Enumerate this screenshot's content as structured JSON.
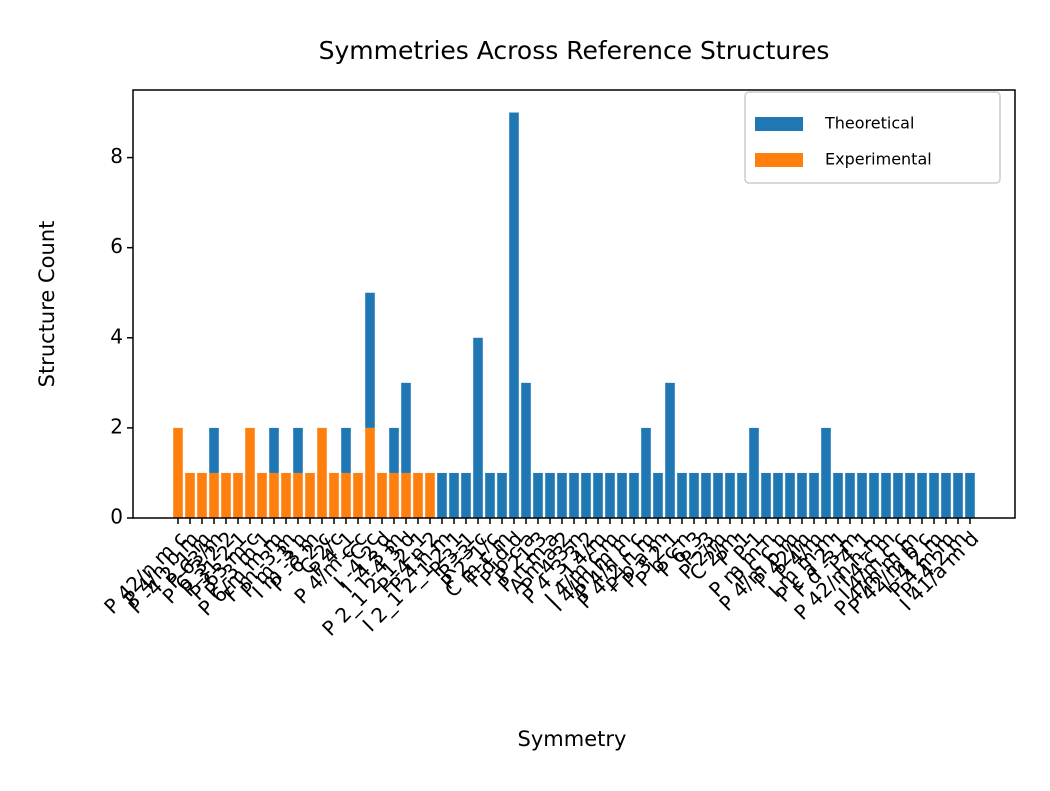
{
  "chart_data": {
    "type": "stacked_bar",
    "title": "Symmetries Across Reference Structures",
    "xlabel": "Symmetry",
    "ylabel": "Structure Count",
    "categories": [
      "P 42/n m c",
      "P 4/n b m",
      "P -4 2_1 m",
      "P 63/m",
      "P 6_3 2 2",
      "P 31 2 1",
      "P 63 m c",
      "P -3 m 1",
      "P 6/m m m",
      "F m -3 m",
      "P m -3 n",
      "I m -3 m",
      "P -6 2 c",
      "C 2/c",
      "P 4_1",
      "P 4/m c c",
      "C c",
      "I -4 2 d",
      "I -4 3 m",
      "I -4 3 d",
      "P 2_1 2_1 2_1",
      "P -4 n 2",
      "P 4 n m",
      "I 2_1 2_1 2_1",
      "P 3_1",
      "R -3 c",
      "P 2_1/c",
      "C m c m",
      "F d d d",
      "P b c a",
      "P 21 3",
      "P n m a",
      "A m a 2",
      "P -4 3 n",
      "P 4_3 3 2",
      "I 4/m",
      "I 4/m c m",
      "I 4/m m m",
      "P 4/n c c",
      "P 4_2 n m",
      "P b a m",
      "P 3 2 1",
      "P b c n",
      "P 6_3",
      "P -3",
      "P 2/m",
      "C 2/m",
      "P -1",
      "P 1",
      "P m m n",
      "P c c n",
      "P 4/m b m",
      "P 42/m",
      "P 4/m",
      "I m m m",
      "P c a 2_1",
      "F d -3 m",
      "I 4_1",
      "P 42/m n m",
      "I 4 c m",
      "I 4/m c c",
      "P 4/m m m",
      "P 42/m b c",
      "I -4 2 m",
      "P 4 m m",
      "P -4 2 m",
      "I 41/a m d"
    ],
    "series": [
      {
        "name": "Theoretical",
        "color": "#1f77b4",
        "values": [
          0,
          0,
          0,
          1,
          0,
          0,
          0,
          0,
          1,
          0,
          1,
          0,
          0,
          0,
          1,
          0,
          3,
          0,
          1,
          2,
          0,
          0,
          1,
          1,
          1,
          4,
          1,
          1,
          9,
          3,
          1,
          1,
          1,
          1,
          1,
          1,
          1,
          1,
          1,
          2,
          1,
          3,
          1,
          1,
          1,
          1,
          1,
          1,
          2,
          1,
          1,
          1,
          1,
          1,
          2,
          1,
          1,
          1,
          1,
          1,
          1,
          1,
          1,
          1,
          1,
          1,
          1
        ]
      },
      {
        "name": "Experimental",
        "color": "#ff7f0e",
        "values": [
          2,
          1,
          1,
          1,
          1,
          1,
          2,
          1,
          1,
          1,
          1,
          1,
          2,
          1,
          1,
          1,
          2,
          1,
          1,
          1,
          1,
          1,
          0,
          0,
          0,
          0,
          0,
          0,
          0,
          0,
          0,
          0,
          0,
          0,
          0,
          0,
          0,
          0,
          0,
          0,
          0,
          0,
          0,
          0,
          0,
          0,
          0,
          0,
          0,
          0,
          0,
          0,
          0,
          0,
          0,
          0,
          0,
          0,
          0,
          0,
          0,
          0,
          0,
          0,
          0,
          0,
          0
        ]
      }
    ],
    "ylim": [
      0,
      9.5
    ],
    "yticks": [
      0,
      2,
      4,
      6,
      8
    ],
    "legend": "upper right"
  }
}
